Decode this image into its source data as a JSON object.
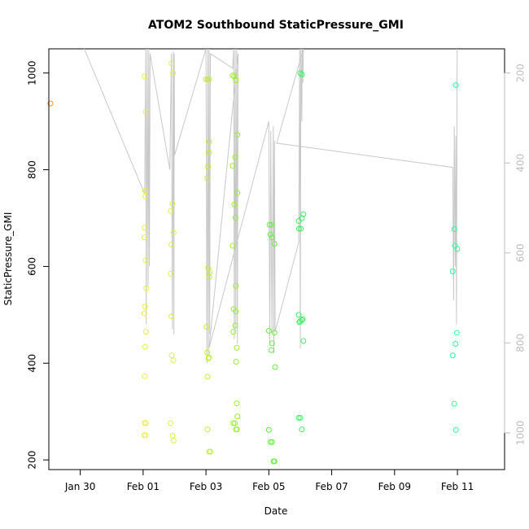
{
  "chart_data": {
    "type": "scatter",
    "title": "ATOM2 Southbound StaticPressure_GMI",
    "xlabel": "Date",
    "ylabel": "StaticPressure_GMI",
    "xlim": [
      -3.0,
      11.5
    ],
    "ylim": [
      180,
      1050
    ],
    "x_ticks": [
      {
        "value": -2,
        "label": "Jan 30"
      },
      {
        "value": 0,
        "label": "Feb 01"
      },
      {
        "value": 2,
        "label": "Feb 03"
      },
      {
        "value": 4,
        "label": "Feb 05"
      },
      {
        "value": 6,
        "label": "Feb 07"
      },
      {
        "value": 8,
        "label": "Feb 09"
      },
      {
        "value": 10,
        "label": "Feb 11"
      }
    ],
    "y_ticks": [
      200,
      400,
      600,
      800,
      1000
    ],
    "y2_ticks": [
      {
        "value": 1000,
        "label": "200"
      },
      {
        "value": 814,
        "label": "400"
      },
      {
        "value": 628,
        "label": "600"
      },
      {
        "value": 442,
        "label": "800"
      },
      {
        "value": 256,
        "label": "1000"
      }
    ],
    "points": [
      {
        "x": -2.95,
        "y": 937,
        "color": "#ff9900"
      },
      {
        "x": 0.05,
        "y": 993,
        "color": "#e8f040"
      },
      {
        "x": 0.08,
        "y": 920,
        "color": "#e8f040"
      },
      {
        "x": 0.06,
        "y": 757,
        "color": "#e8f040"
      },
      {
        "x": 0.07,
        "y": 745,
        "color": "#e8f040"
      },
      {
        "x": 0.05,
        "y": 680,
        "color": "#e8f040"
      },
      {
        "x": 0.04,
        "y": 660,
        "color": "#e8f040"
      },
      {
        "x": 0.08,
        "y": 613,
        "color": "#e8f040"
      },
      {
        "x": 0.1,
        "y": 555,
        "color": "#e8f040"
      },
      {
        "x": 0.06,
        "y": 517,
        "color": "#e8f040"
      },
      {
        "x": 0.04,
        "y": 503,
        "color": "#e8f040"
      },
      {
        "x": 0.09,
        "y": 465,
        "color": "#e8f040"
      },
      {
        "x": 0.06,
        "y": 434,
        "color": "#e8f040"
      },
      {
        "x": 0.05,
        "y": 373,
        "color": "#e8f040"
      },
      {
        "x": 0.04,
        "y": 276,
        "color": "#e8f040"
      },
      {
        "x": 0.09,
        "y": 276,
        "color": "#e8f040"
      },
      {
        "x": 0.04,
        "y": 251,
        "color": "#e8f040"
      },
      {
        "x": 0.08,
        "y": 251,
        "color": "#e8f040"
      },
      {
        "x": 0.9,
        "y": 1020,
        "color": "#e0f040"
      },
      {
        "x": 0.95,
        "y": 1000,
        "color": "#e0f040"
      },
      {
        "x": 0.93,
        "y": 730,
        "color": "#e0f040"
      },
      {
        "x": 0.88,
        "y": 715,
        "color": "#e0f040"
      },
      {
        "x": 0.97,
        "y": 670,
        "color": "#e0f040"
      },
      {
        "x": 0.9,
        "y": 645,
        "color": "#e0f040"
      },
      {
        "x": 0.88,
        "y": 585,
        "color": "#e0f040"
      },
      {
        "x": 0.9,
        "y": 497,
        "color": "#e0f040"
      },
      {
        "x": 0.91,
        "y": 416,
        "color": "#e0f040"
      },
      {
        "x": 0.96,
        "y": 406,
        "color": "#e0f040"
      },
      {
        "x": 0.87,
        "y": 276,
        "color": "#e0f040"
      },
      {
        "x": 0.94,
        "y": 250,
        "color": "#e0f040"
      },
      {
        "x": 0.97,
        "y": 240,
        "color": "#e0f040"
      },
      {
        "x": 2.0,
        "y": 987,
        "color": "#c0ef30"
      },
      {
        "x": 2.05,
        "y": 987,
        "color": "#c0ef30"
      },
      {
        "x": 2.1,
        "y": 987,
        "color": "#c0ef30"
      },
      {
        "x": 2.1,
        "y": 858,
        "color": "#c0ef30"
      },
      {
        "x": 2.1,
        "y": 836,
        "color": "#c0ef30"
      },
      {
        "x": 2.07,
        "y": 806,
        "color": "#c0ef30"
      },
      {
        "x": 2.04,
        "y": 783,
        "color": "#c0ef30"
      },
      {
        "x": 2.07,
        "y": 597,
        "color": "#c0ef30"
      },
      {
        "x": 2.12,
        "y": 588,
        "color": "#c0ef30"
      },
      {
        "x": 2.1,
        "y": 578,
        "color": "#c0ef30"
      },
      {
        "x": 2.02,
        "y": 475,
        "color": "#c0ef30"
      },
      {
        "x": 2.04,
        "y": 422,
        "color": "#c0ef30"
      },
      {
        "x": 2.1,
        "y": 412,
        "color": "#c0ef30"
      },
      {
        "x": 2.08,
        "y": 410,
        "color": "#c0ef30"
      },
      {
        "x": 2.05,
        "y": 372,
        "color": "#c0ef30"
      },
      {
        "x": 2.05,
        "y": 263,
        "color": "#c0ef30"
      },
      {
        "x": 2.1,
        "y": 217,
        "color": "#c0ef30"
      },
      {
        "x": 2.14,
        "y": 217,
        "color": "#c0ef30"
      },
      {
        "x": 2.85,
        "y": 995,
        "color": "#9aef2a"
      },
      {
        "x": 2.9,
        "y": 993,
        "color": "#9aef2a"
      },
      {
        "x": 2.95,
        "y": 985,
        "color": "#9aef2a"
      },
      {
        "x": 3.0,
        "y": 872,
        "color": "#9aef2a"
      },
      {
        "x": 2.93,
        "y": 826,
        "color": "#9aef2a"
      },
      {
        "x": 2.85,
        "y": 808,
        "color": "#9aef2a"
      },
      {
        "x": 3.0,
        "y": 752,
        "color": "#9aef2a"
      },
      {
        "x": 2.9,
        "y": 728,
        "color": "#9aef2a"
      },
      {
        "x": 2.94,
        "y": 701,
        "color": "#9aef2a"
      },
      {
        "x": 2.85,
        "y": 643,
        "color": "#9aef2a"
      },
      {
        "x": 2.95,
        "y": 560,
        "color": "#9aef2a"
      },
      {
        "x": 2.88,
        "y": 512,
        "color": "#9aef2a"
      },
      {
        "x": 2.95,
        "y": 507,
        "color": "#9aef2a"
      },
      {
        "x": 2.93,
        "y": 478,
        "color": "#9aef2a"
      },
      {
        "x": 2.87,
        "y": 465,
        "color": "#9aef2a"
      },
      {
        "x": 2.98,
        "y": 432,
        "color": "#9aef2a"
      },
      {
        "x": 2.96,
        "y": 403,
        "color": "#9aef2a"
      },
      {
        "x": 2.98,
        "y": 317,
        "color": "#9aef2a"
      },
      {
        "x": 3.0,
        "y": 290,
        "color": "#9aef2a"
      },
      {
        "x": 2.87,
        "y": 276,
        "color": "#9aef2a"
      },
      {
        "x": 2.92,
        "y": 276,
        "color": "#9aef2a"
      },
      {
        "x": 2.95,
        "y": 263,
        "color": "#9aef2a"
      },
      {
        "x": 2.99,
        "y": 263,
        "color": "#9aef2a"
      },
      {
        "x": 4.02,
        "y": 686,
        "color": "#66ee44"
      },
      {
        "x": 4.08,
        "y": 686,
        "color": "#66ee44"
      },
      {
        "x": 4.05,
        "y": 666,
        "color": "#66ee44"
      },
      {
        "x": 4.1,
        "y": 660,
        "color": "#66ee44"
      },
      {
        "x": 4.18,
        "y": 647,
        "color": "#66ee44"
      },
      {
        "x": 4.0,
        "y": 467,
        "color": "#66ee44"
      },
      {
        "x": 4.18,
        "y": 463,
        "color": "#66ee44"
      },
      {
        "x": 4.1,
        "y": 441,
        "color": "#66ee44"
      },
      {
        "x": 4.08,
        "y": 427,
        "color": "#66ee44"
      },
      {
        "x": 4.2,
        "y": 392,
        "color": "#66ee44"
      },
      {
        "x": 4.0,
        "y": 262,
        "color": "#66ee44"
      },
      {
        "x": 4.05,
        "y": 237,
        "color": "#66ee44"
      },
      {
        "x": 4.1,
        "y": 237,
        "color": "#66ee44"
      },
      {
        "x": 4.15,
        "y": 197,
        "color": "#66ee44"
      },
      {
        "x": 4.18,
        "y": 197,
        "color": "#66ee44"
      },
      {
        "x": 5.0,
        "y": 1000,
        "color": "#44ee60"
      },
      {
        "x": 5.05,
        "y": 997,
        "color": "#44ee60"
      },
      {
        "x": 5.1,
        "y": 708,
        "color": "#44ee60"
      },
      {
        "x": 5.05,
        "y": 700,
        "color": "#44ee60"
      },
      {
        "x": 4.95,
        "y": 694,
        "color": "#44ee60"
      },
      {
        "x": 4.96,
        "y": 678,
        "color": "#44ee60"
      },
      {
        "x": 5.02,
        "y": 678,
        "color": "#44ee60"
      },
      {
        "x": 4.95,
        "y": 500,
        "color": "#44ee60"
      },
      {
        "x": 5.08,
        "y": 491,
        "color": "#44ee60"
      },
      {
        "x": 5.05,
        "y": 489,
        "color": "#44ee60"
      },
      {
        "x": 5.0,
        "y": 487,
        "color": "#44ee60"
      },
      {
        "x": 4.97,
        "y": 485,
        "color": "#44ee60"
      },
      {
        "x": 5.1,
        "y": 446,
        "color": "#44ee60"
      },
      {
        "x": 4.95,
        "y": 287,
        "color": "#44ee60"
      },
      {
        "x": 5.0,
        "y": 287,
        "color": "#44ee60"
      },
      {
        "x": 5.05,
        "y": 263,
        "color": "#44ee60"
      },
      {
        "x": 9.95,
        "y": 975,
        "color": "#2aff99"
      },
      {
        "x": 9.9,
        "y": 677,
        "color": "#2aff99"
      },
      {
        "x": 9.92,
        "y": 643,
        "color": "#2aff99"
      },
      {
        "x": 10.0,
        "y": 636,
        "color": "#2aff99"
      },
      {
        "x": 9.85,
        "y": 590,
        "color": "#2aff99"
      },
      {
        "x": 9.98,
        "y": 463,
        "color": "#2aff99"
      },
      {
        "x": 9.94,
        "y": 440,
        "color": "#2aff99"
      },
      {
        "x": 9.85,
        "y": 416,
        "color": "#2aff99"
      },
      {
        "x": 9.9,
        "y": 316,
        "color": "#2aff99"
      },
      {
        "x": 9.95,
        "y": 262,
        "color": "#2aff99"
      }
    ],
    "track": [
      [
        -2.0,
        1070
      ],
      [
        0.05,
        750
      ],
      [
        0.08,
        1050
      ],
      [
        0.1,
        480
      ],
      [
        0.13,
        1050
      ],
      [
        0.16,
        560
      ],
      [
        0.18,
        1050
      ],
      [
        0.2,
        600
      ],
      [
        0.22,
        1040
      ],
      [
        0.85,
        800
      ],
      [
        0.9,
        1040
      ],
      [
        0.93,
        470
      ],
      [
        0.96,
        1045
      ],
      [
        0.98,
        460
      ],
      [
        0.99,
        1040
      ],
      [
        1.0,
        830
      ],
      [
        2.0,
        1050
      ],
      [
        2.03,
        400
      ],
      [
        2.06,
        1050
      ],
      [
        2.08,
        420
      ],
      [
        2.1,
        1050
      ],
      [
        2.12,
        460
      ],
      [
        2.14,
        1040
      ],
      [
        2.85,
        1010
      ],
      [
        2.88,
        1050
      ],
      [
        2.9,
        450
      ],
      [
        2.93,
        1050
      ],
      [
        2.95,
        470
      ],
      [
        2.98,
        1050
      ],
      [
        3.0,
        440
      ],
      [
        3.02,
        1040
      ],
      [
        2.1,
        432
      ],
      [
        4.0,
        900
      ],
      [
        4.03,
        440
      ],
      [
        4.06,
        880
      ],
      [
        4.1,
        460
      ],
      [
        4.14,
        890
      ],
      [
        4.16,
        420
      ],
      [
        4.18,
        860
      ],
      [
        4.2,
        465
      ],
      [
        4.95,
        650
      ],
      [
        4.98,
        1050
      ],
      [
        5.0,
        430
      ],
      [
        5.02,
        1050
      ],
      [
        5.05,
        900
      ],
      [
        5.06,
        1050
      ],
      [
        5.08,
        980
      ],
      [
        5.1,
        1050
      ],
      [
        4.25,
        855
      ],
      [
        9.85,
        805
      ],
      [
        9.88,
        530
      ],
      [
        9.9,
        890
      ],
      [
        9.93,
        600
      ],
      [
        9.95,
        870
      ],
      [
        9.97,
        480
      ],
      [
        9.99,
        1050
      ]
    ]
  }
}
